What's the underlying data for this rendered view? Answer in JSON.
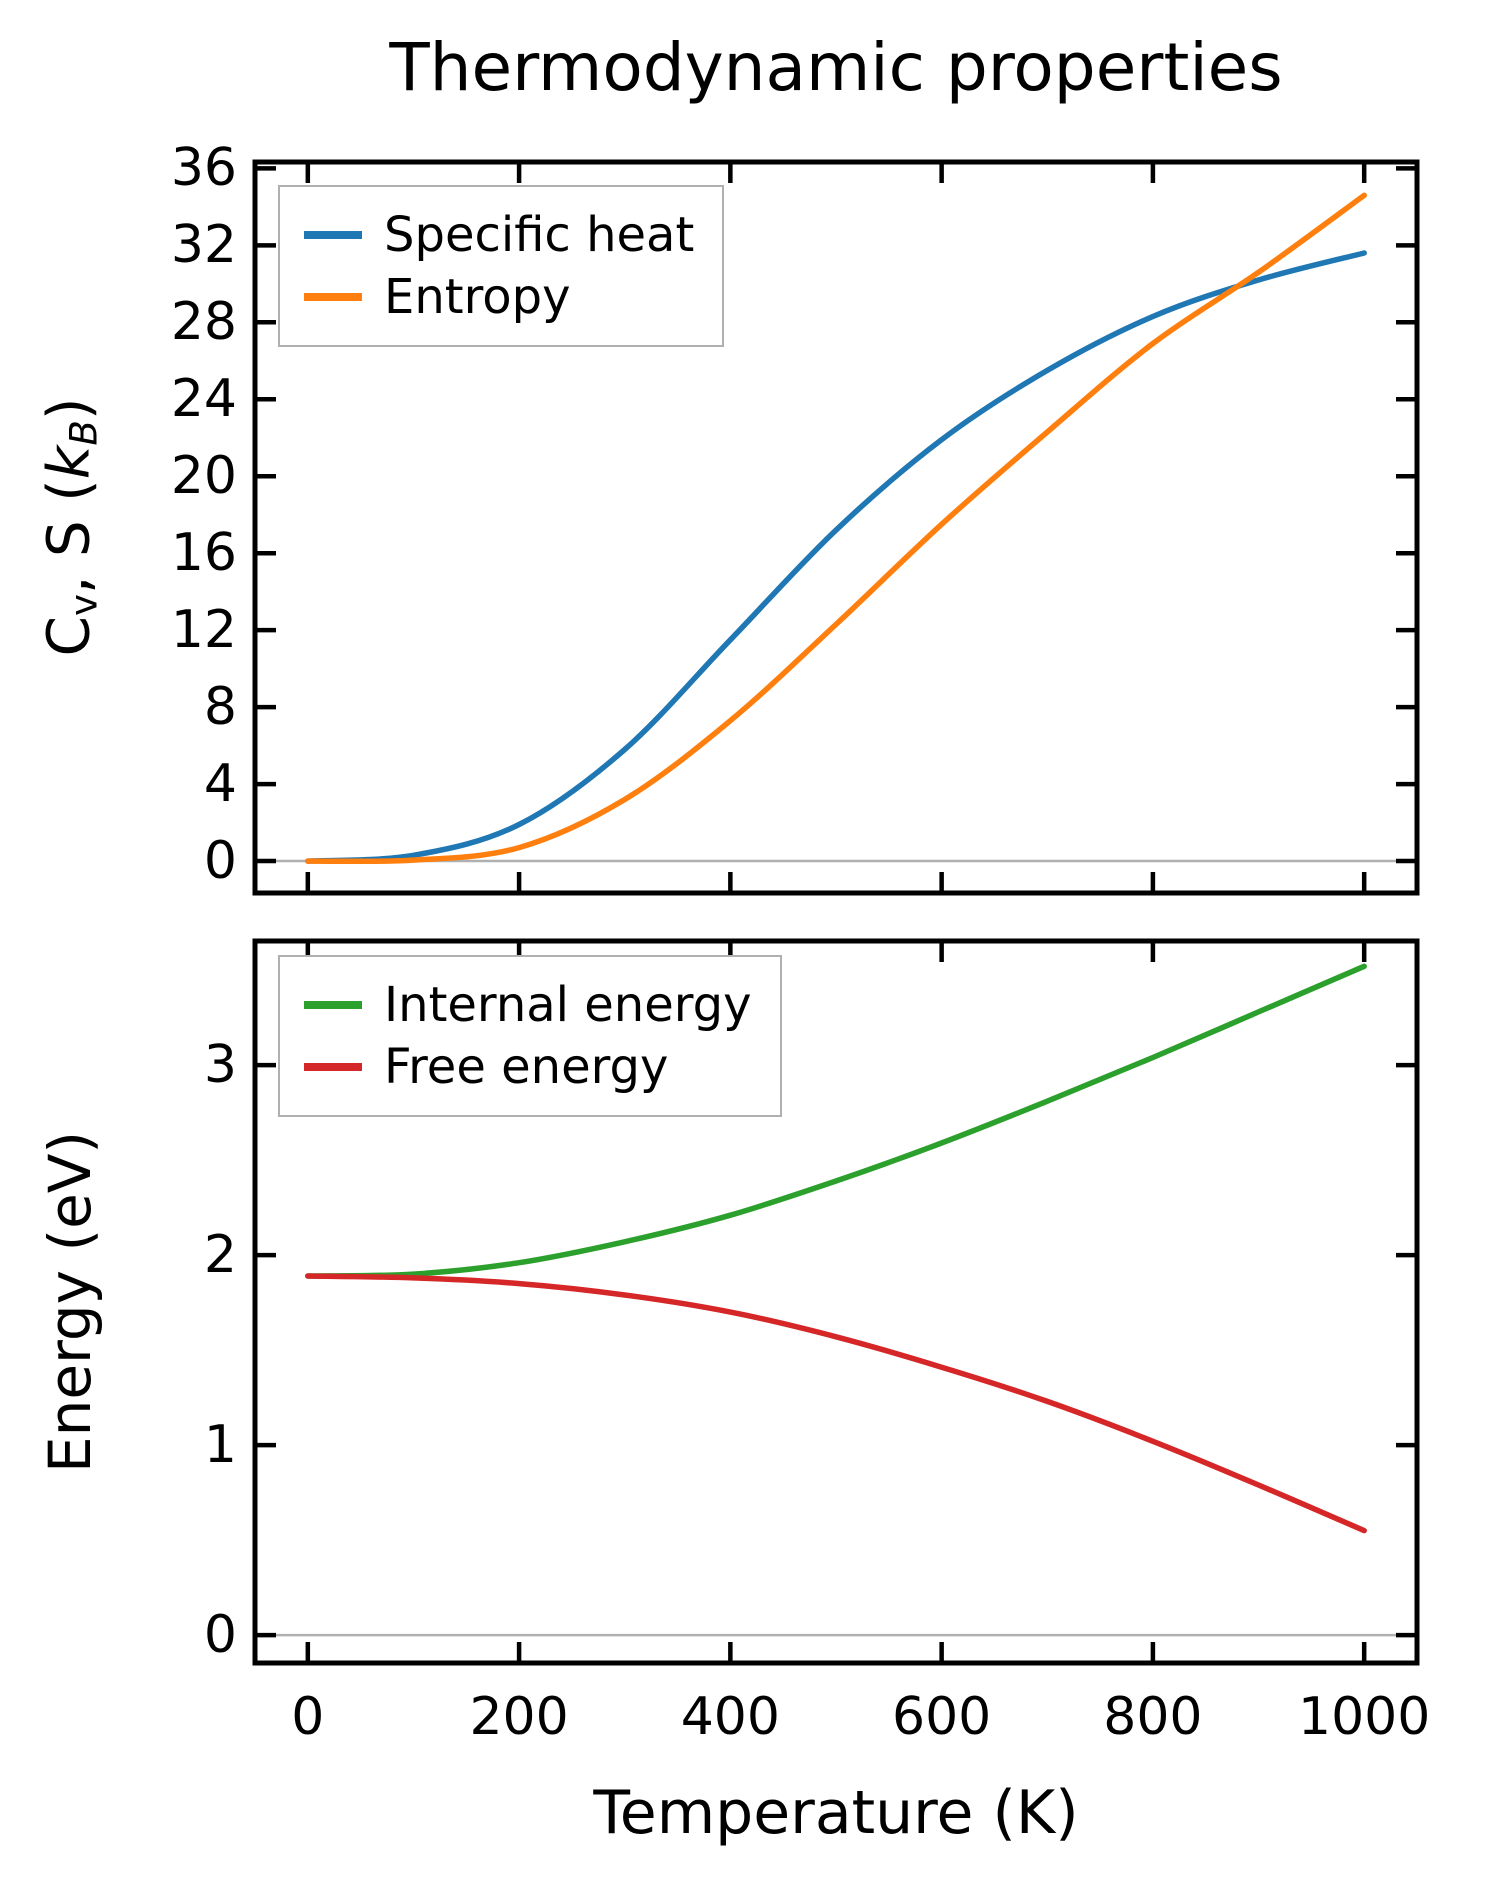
{
  "title": "Thermodynamic properties",
  "labels": {
    "xlabel": "Temperature (K)",
    "ylabel_bottom": "Energy (eV)",
    "ylabel_top": {
      "pre": "C",
      "sub1": "v",
      "mid": ", S (",
      "k": "k",
      "sub2": "B",
      "post": ")"
    }
  },
  "colors": {
    "specific_heat": "#1f77b4",
    "entropy": "#ff7f0e",
    "internal_energy": "#2ca02c",
    "free_energy": "#d62728",
    "zero_line": "#b0b0b0",
    "legend_border": "#b0b0b0",
    "axis": "#000000"
  },
  "chart_data": [
    {
      "type": "line",
      "panel": "top",
      "ylabel": "C_v, S (k_B)",
      "x": [
        0,
        100,
        200,
        300,
        400,
        500,
        600,
        700,
        800,
        900,
        1000
      ],
      "series": [
        {
          "name": "Specific heat",
          "color": "#1f77b4",
          "values": [
            0.0,
            0.3,
            1.9,
            5.8,
            11.5,
            17.2,
            21.9,
            25.5,
            28.3,
            30.2,
            31.6
          ]
        },
        {
          "name": "Entropy",
          "color": "#ff7f0e",
          "values": [
            0.0,
            0.05,
            0.7,
            3.2,
            7.3,
            12.3,
            17.5,
            22.3,
            26.9,
            30.6,
            34.6
          ]
        }
      ],
      "xticks": [
        0,
        200,
        400,
        600,
        800,
        1000
      ],
      "yticks": [
        0,
        4,
        8,
        12,
        16,
        20,
        24,
        28,
        32,
        36
      ],
      "xlim": [
        -50,
        1050
      ],
      "ylim": [
        -1.66,
        36.33
      ],
      "grid": false,
      "zero_line": true,
      "legend_position": "upper left",
      "show_xtick_labels": false
    },
    {
      "type": "line",
      "panel": "bottom",
      "ylabel": "Energy (eV)",
      "xlabel": "Temperature (K)",
      "x": [
        0,
        100,
        200,
        300,
        400,
        500,
        600,
        700,
        800,
        900,
        1000
      ],
      "series": [
        {
          "name": "Internal energy",
          "color": "#2ca02c",
          "values": [
            1.89,
            1.9,
            1.96,
            2.07,
            2.21,
            2.39,
            2.59,
            2.81,
            3.04,
            3.28,
            3.52
          ]
        },
        {
          "name": "Free energy",
          "color": "#d62728",
          "values": [
            1.89,
            1.88,
            1.85,
            1.79,
            1.7,
            1.57,
            1.41,
            1.23,
            1.02,
            0.79,
            0.55
          ]
        }
      ],
      "xticks": [
        0,
        200,
        400,
        600,
        800,
        1000
      ],
      "yticks": [
        0,
        1,
        2,
        3
      ],
      "xlim": [
        -50,
        1050
      ],
      "ylim": [
        -0.147,
        3.653
      ],
      "grid": false,
      "zero_line": true,
      "legend_position": "upper left",
      "show_xtick_labels": true
    }
  ]
}
